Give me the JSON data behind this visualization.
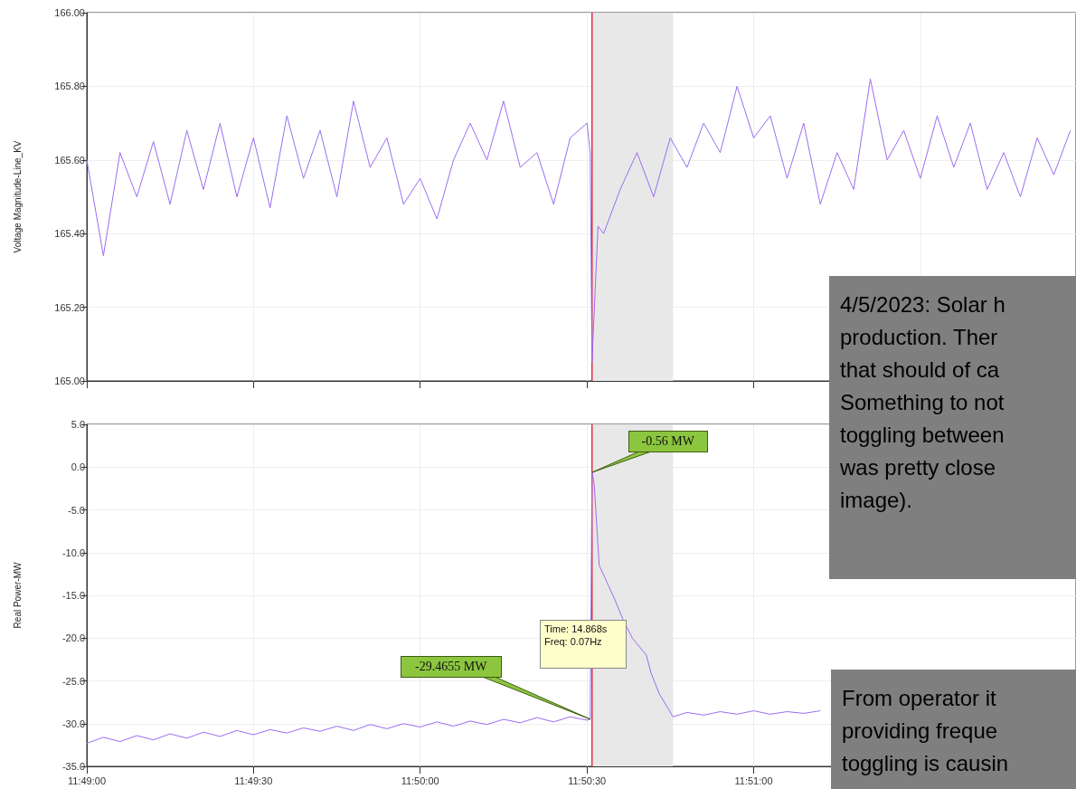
{
  "chart_data": [
    {
      "type": "line",
      "ylabel": "Voltage Magnitude-Line_KV",
      "xlim": [
        11.81667,
        11.86611
      ],
      "ylim": [
        165,
        166
      ],
      "xticks": [
        {
          "value": 11.81667,
          "label": null
        },
        {
          "value": 11.825,
          "label": null
        },
        {
          "value": 11.83333,
          "label": null
        },
        {
          "value": 11.84167,
          "label": null
        },
        {
          "value": 11.85,
          "label": null
        },
        {
          "value": 11.85833,
          "label": null
        }
      ],
      "yticks": [
        {
          "value": 165,
          "label": "165.00"
        },
        {
          "value": 165.2,
          "label": "165.20"
        },
        {
          "value": 165.4,
          "label": "165.40"
        },
        {
          "value": 165.6,
          "label": "165.60"
        },
        {
          "value": 165.8,
          "label": "165.80"
        },
        {
          "value": 166,
          "label": "166.00"
        }
      ],
      "tick_labels": "y",
      "grid": true,
      "series": [
        {
          "color": "#9b6cf0",
          "x": [
            11.81667,
            11.8175,
            11.81833,
            11.81917,
            11.82,
            11.82083,
            11.82167,
            11.8225,
            11.82333,
            11.82417,
            11.825,
            11.82583,
            11.82667,
            11.8275,
            11.82833,
            11.82917,
            11.83,
            11.83083,
            11.83167,
            11.8325,
            11.83333,
            11.83417,
            11.835,
            11.83583,
            11.83667,
            11.8375,
            11.83833,
            11.83917,
            11.84,
            11.84083,
            11.84167,
            11.84183,
            11.84192,
            11.84208,
            11.84222,
            11.8425,
            11.84333,
            11.84417,
            11.845,
            11.84583,
            11.84667,
            11.8475,
            11.84833,
            11.84917,
            11.85,
            11.85083,
            11.85167,
            11.8525,
            11.85333,
            11.85417,
            11.855,
            11.85583,
            11.85667,
            11.8575,
            11.85833,
            11.85917,
            11.86,
            11.86083,
            11.86167,
            11.8625,
            11.86333,
            11.86417,
            11.865,
            11.86583
          ],
          "values": [
            165.6,
            165.34,
            165.62,
            165.5,
            165.65,
            165.48,
            165.68,
            165.52,
            165.7,
            165.5,
            165.66,
            165.47,
            165.72,
            165.55,
            165.68,
            165.5,
            165.76,
            165.58,
            165.66,
            165.48,
            165.55,
            165.44,
            165.6,
            165.7,
            165.6,
            165.76,
            165.58,
            165.62,
            165.48,
            165.66,
            165.7,
            165.62,
            165.05,
            165.25,
            165.42,
            165.4,
            165.52,
            165.62,
            165.5,
            165.66,
            165.58,
            165.7,
            165.62,
            165.8,
            165.66,
            165.72,
            165.55,
            165.7,
            165.48,
            165.62,
            165.52,
            165.82,
            165.6,
            165.68,
            165.55,
            165.72,
            165.58,
            165.7,
            165.52,
            165.62,
            165.5,
            165.66,
            165.56,
            165.68
          ]
        }
      ],
      "ref_lines": [
        {
          "axis": "x",
          "value": 11.84192,
          "color": "#e0304a"
        }
      ],
      "bands": [
        {
          "axis": "x",
          "from": 11.84192,
          "to": 11.84597,
          "color": "#e8e8e8"
        }
      ],
      "annotations": [
        "4/5/2023: Solar h\nproduction. Ther\nthat should of ca\nSomething to not\ntoggling between\nwas pretty close\nimage)."
      ]
    },
    {
      "type": "line",
      "ylabel": "Real Power-MW",
      "xlim": [
        11.81667,
        11.86611
      ],
      "ylim": [
        -35,
        5
      ],
      "xticks": [
        {
          "value": 11.81667,
          "label": "11:49:00"
        },
        {
          "value": 11.825,
          "label": "11:49:30"
        },
        {
          "value": 11.83333,
          "label": "11:50:00"
        },
        {
          "value": 11.84167,
          "label": "11:50:30"
        },
        {
          "value": 11.85,
          "label": "11:51:00"
        }
      ],
      "yticks": [
        {
          "value": -35,
          "label": "-35.0"
        },
        {
          "value": -30,
          "label": "-30.0"
        },
        {
          "value": -25,
          "label": "-25.0"
        },
        {
          "value": -20,
          "label": "-20.0"
        },
        {
          "value": -15,
          "label": "-15.0"
        },
        {
          "value": -10,
          "label": "-10.0"
        },
        {
          "value": -5,
          "label": "-5.0"
        },
        {
          "value": 0,
          "label": "0.0"
        },
        {
          "value": 5,
          "label": "5.0"
        }
      ],
      "grid": true,
      "series": [
        {
          "color": "#9b6cf0",
          "x": [
            11.81667,
            11.8175,
            11.81833,
            11.81917,
            11.82,
            11.82083,
            11.82167,
            11.8225,
            11.82333,
            11.82417,
            11.825,
            11.82583,
            11.82667,
            11.8275,
            11.82833,
            11.82917,
            11.83,
            11.83083,
            11.83167,
            11.8325,
            11.83333,
            11.83417,
            11.835,
            11.83583,
            11.83667,
            11.8375,
            11.83833,
            11.83917,
            11.84,
            11.84083,
            11.84167,
            11.84183,
            11.84192,
            11.84203,
            11.84228,
            11.84258,
            11.84306,
            11.8435,
            11.84394,
            11.84464,
            11.84486,
            11.84528,
            11.84597,
            11.84667,
            11.8475,
            11.84833,
            11.84917,
            11.85,
            11.85083,
            11.85167,
            11.8525,
            11.85333
          ],
          "values": [
            -32.3,
            -31.6,
            -32.1,
            -31.4,
            -31.9,
            -31.2,
            -31.7,
            -31.0,
            -31.5,
            -30.8,
            -31.3,
            -30.7,
            -31.1,
            -30.5,
            -30.9,
            -30.3,
            -30.8,
            -30.1,
            -30.6,
            -30.0,
            -30.4,
            -29.8,
            -30.3,
            -29.7,
            -30.1,
            -29.5,
            -29.9,
            -29.3,
            -29.8,
            -29.2,
            -29.6,
            -29.4655,
            -0.56,
            -2.0,
            -11.5,
            -13.0,
            -15.5,
            -18.0,
            -20.0,
            -22.0,
            -24.0,
            -26.5,
            -29.2,
            -28.7,
            -29.0,
            -28.6,
            -28.9,
            -28.5,
            -28.9,
            -28.6,
            -28.8,
            -28.5
          ]
        }
      ],
      "ref_lines": [
        {
          "axis": "x",
          "value": 11.84192,
          "color": "#e0304a"
        }
      ],
      "bands": [
        {
          "axis": "x",
          "from": 11.84192,
          "to": 11.84597,
          "color": "#e8e8e8"
        }
      ],
      "annotations": [
        {
          "text": "-0.56 MW",
          "x": 11.84192,
          "y": -0.56
        },
        {
          "text": "-29.4655 MW",
          "x": 11.84183,
          "y": -29.4655
        },
        "Time: 14.868s\nFreq: 0.07Hz",
        "From operator it\nproviding freque\ntoggling is causin"
      ]
    }
  ]
}
